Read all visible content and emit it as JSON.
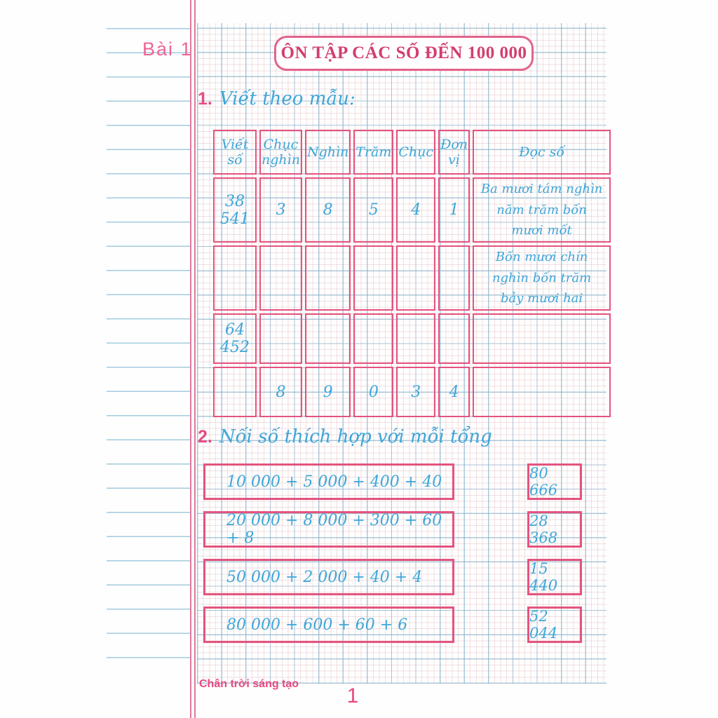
{
  "page": {
    "lesson_label": "Bài 1",
    "title": "ÔN TẬP CÁC SỐ ĐẾN 100 000",
    "footer_brand": "Chân trời sáng tạo",
    "page_number": "1"
  },
  "colors": {
    "pink_border": "#e4547e",
    "pink_text": "#e9487f",
    "title_text": "#d23f6e",
    "blue_handwriting": "#3ea6d8",
    "grid_major_blue": "#7db2cc",
    "grid_fine_pink": "#e2bac0"
  },
  "exercise1": {
    "number": "1.",
    "prompt": "Viết theo mẫu:",
    "table": {
      "headers": [
        "Viết số",
        "Chục nghìn",
        "Nghìn",
        "Trăm",
        "Chục",
        "Đơn vị",
        "Đọc số"
      ],
      "rows": [
        [
          "38 541",
          "3",
          "8",
          "5",
          "4",
          "1",
          "Ba mươi tám nghìn năm trăm bốn mươi mốt"
        ],
        [
          "",
          "",
          "",
          "",
          "",
          "",
          "Bốn mươi chín nghìn bốn trăm bảy mươi hai"
        ],
        [
          "64 452",
          "",
          "",
          "",
          "",
          "",
          ""
        ],
        [
          "",
          "8",
          "9",
          "0",
          "3",
          "4",
          ""
        ]
      ]
    }
  },
  "exercise2": {
    "number": "2.",
    "prompt": "Nối số thích hợp với mỗi tổng",
    "pairs": [
      {
        "sum": "10 000 + 5 000 + 400 + 40",
        "number": "80 666"
      },
      {
        "sum": "20 000 + 8 000 + 300 + 60 + 8",
        "number": "28 368"
      },
      {
        "sum": "50 000 + 2 000 + 40 + 4",
        "number": "15 440"
      },
      {
        "sum": "80 000 + 600 + 60 + 6",
        "number": "52 044"
      }
    ]
  }
}
